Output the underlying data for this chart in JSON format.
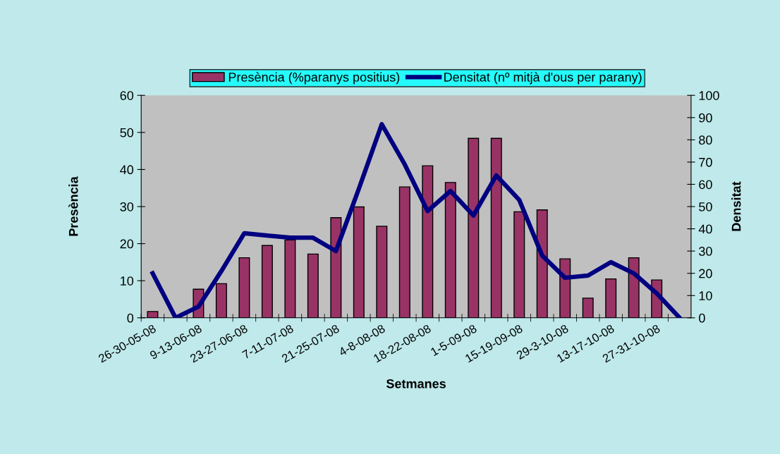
{
  "chart_data": {
    "type": "bar",
    "xlabel": "Setmanes",
    "ylabel": "Presència",
    "y2label": "Densitat",
    "categories": [
      "26-30-05-08",
      null,
      "9-13-06-08",
      null,
      "23-27-06-08",
      null,
      "7-11-07-08",
      null,
      "21-25-07-08",
      null,
      "4-8-08-08",
      null,
      "18-22-08-08",
      null,
      "1-5-09-08",
      null,
      "15-19-09-08",
      null,
      "29-3-10-08",
      null,
      "13-17-10-08",
      null,
      "27-31-10-08",
      null
    ],
    "series": [
      {
        "name": "Presència (%paranys positius)",
        "type": "bar",
        "color": "#993366",
        "values": [
          1.7,
          null,
          7.7,
          9.2,
          16.2,
          19.5,
          21,
          17.2,
          27,
          29.9,
          24.7,
          35.3,
          41,
          36.5,
          48.4,
          48.4,
          28.6,
          29.1,
          15.9,
          5.3,
          10.5,
          16.2,
          10.2,
          null
        ]
      },
      {
        "name": "Densitat (nº mitjà d'ous per parany)",
        "type": "line",
        "axis": "y2",
        "color": "#000080",
        "values": [
          20,
          0,
          5,
          21,
          38,
          37,
          36,
          36,
          30,
          58,
          87,
          69,
          48,
          57,
          46,
          64,
          53,
          28,
          18,
          19,
          25,
          20,
          11,
          0
        ]
      }
    ],
    "ylim": [
      0,
      60
    ],
    "yticks": [
      0,
      10,
      20,
      30,
      40,
      50,
      60
    ],
    "y2lim": [
      0,
      100
    ],
    "y2ticks": [
      0,
      10,
      20,
      30,
      40,
      50,
      60,
      70,
      80,
      90,
      100
    ],
    "grid": false,
    "legend": "top",
    "marker": "none",
    "line_style": "solid"
  }
}
